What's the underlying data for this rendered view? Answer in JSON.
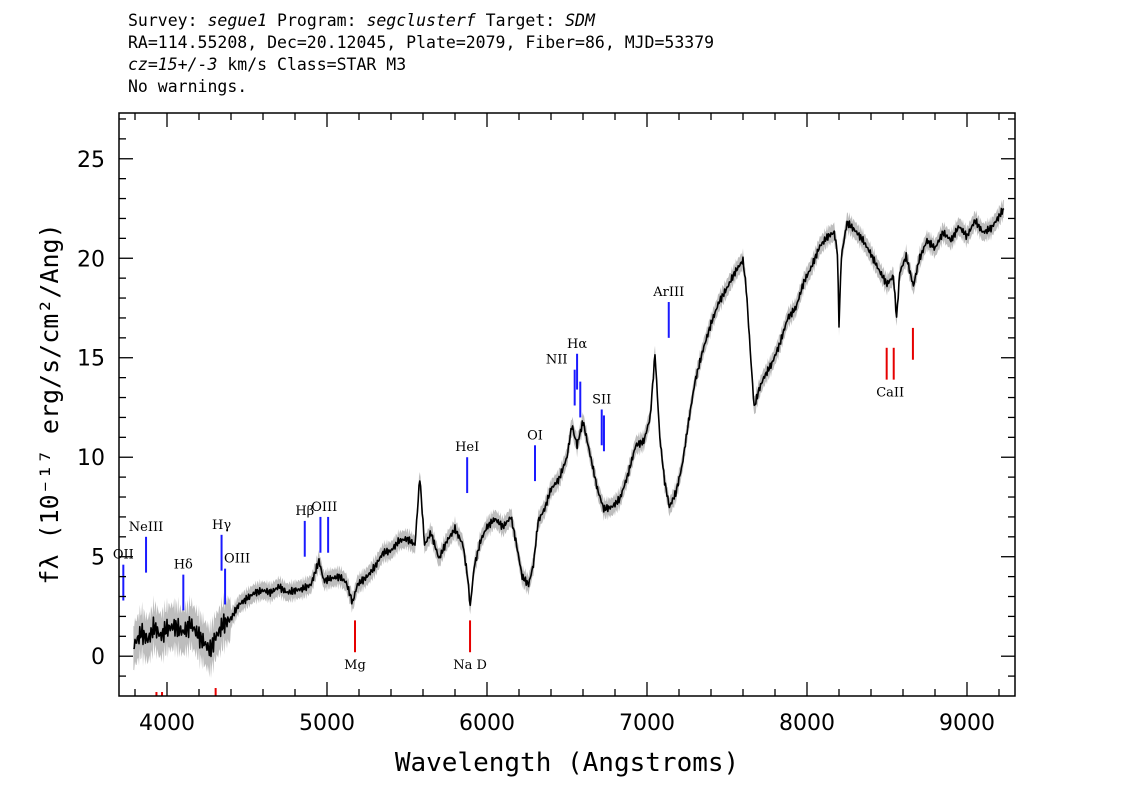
{
  "header": {
    "line1": {
      "survey_label": "Survey: ",
      "survey": "segue1",
      "program_label": " Program: ",
      "program": "segclusterf",
      "target_label": " Target: ",
      "target": "SDM"
    },
    "line2": "RA=114.55208, Dec=20.12045, Plate=2079, Fiber=86, MJD=53379",
    "line3": {
      "cz": "cz=15+/-3",
      "rest": " km/s Class=STAR M3"
    },
    "line4": "No warnings."
  },
  "chart_data": {
    "type": "line",
    "xlabel": "Wavelength (Angstroms)",
    "ylabel": "fλ (10⁻¹⁷ erg/s/cm²/Ang)",
    "xlim": [
      3700,
      9300
    ],
    "ylim": [
      -2,
      27.3
    ],
    "x_ticks": [
      4000,
      5000,
      6000,
      7000,
      8000,
      9000
    ],
    "y_ticks": [
      0,
      5,
      10,
      15,
      20,
      25
    ],
    "grid": false,
    "legend": "none",
    "colors": {
      "spectrum": "#000000",
      "error_band": "#bdbdbd",
      "emission": "#1a1aff",
      "absorption": "#e60000"
    },
    "series": [
      {
        "values": [
          [
            3790,
            0.5
          ],
          [
            3840,
            1.2
          ],
          [
            3880,
            0.8
          ],
          [
            3920,
            1.5
          ],
          [
            3960,
            1.0
          ],
          [
            4000,
            1.4
          ],
          [
            4050,
            1.5
          ],
          [
            4100,
            1.2
          ],
          [
            4150,
            1.6
          ],
          [
            4200,
            1.0
          ],
          [
            4240,
            0.6
          ],
          [
            4270,
            0.3
          ],
          [
            4300,
            0.9
          ],
          [
            4350,
            1.6
          ],
          [
            4400,
            1.9
          ],
          [
            4450,
            2.6
          ],
          [
            4500,
            2.9
          ],
          [
            4550,
            3.2
          ],
          [
            4600,
            3.3
          ],
          [
            4650,
            3.2
          ],
          [
            4700,
            3.5
          ],
          [
            4750,
            3.2
          ],
          [
            4800,
            3.3
          ],
          [
            4850,
            3.4
          ],
          [
            4900,
            3.6
          ],
          [
            4950,
            4.8
          ],
          [
            4980,
            3.8
          ],
          [
            5020,
            3.9
          ],
          [
            5080,
            4.0
          ],
          [
            5120,
            3.7
          ],
          [
            5160,
            2.7
          ],
          [
            5190,
            3.6
          ],
          [
            5250,
            4.0
          ],
          [
            5300,
            4.5
          ],
          [
            5350,
            5.2
          ],
          [
            5400,
            5.3
          ],
          [
            5450,
            5.8
          ],
          [
            5500,
            5.9
          ],
          [
            5550,
            5.6
          ],
          [
            5580,
            9.0
          ],
          [
            5610,
            5.6
          ],
          [
            5650,
            6.2
          ],
          [
            5700,
            4.9
          ],
          [
            5750,
            5.8
          ],
          [
            5800,
            6.4
          ],
          [
            5850,
            5.6
          ],
          [
            5880,
            3.9
          ],
          [
            5895,
            2.5
          ],
          [
            5920,
            4.5
          ],
          [
            5960,
            5.8
          ],
          [
            6000,
            6.5
          ],
          [
            6050,
            6.9
          ],
          [
            6100,
            6.5
          ],
          [
            6150,
            7.0
          ],
          [
            6180,
            5.8
          ],
          [
            6220,
            4.0
          ],
          [
            6260,
            3.6
          ],
          [
            6290,
            4.6
          ],
          [
            6320,
            6.8
          ],
          [
            6360,
            7.4
          ],
          [
            6400,
            8.4
          ],
          [
            6450,
            8.9
          ],
          [
            6500,
            10.0
          ],
          [
            6530,
            11.6
          ],
          [
            6563,
            10.6
          ],
          [
            6600,
            11.8
          ],
          [
            6640,
            10.3
          ],
          [
            6690,
            8.4
          ],
          [
            6730,
            7.4
          ],
          [
            6780,
            7.5
          ],
          [
            6830,
            7.9
          ],
          [
            6880,
            9.1
          ],
          [
            6930,
            10.6
          ],
          [
            6980,
            10.8
          ],
          [
            7020,
            12.0
          ],
          [
            7050,
            15.2
          ],
          [
            7080,
            11.0
          ],
          [
            7110,
            8.8
          ],
          [
            7140,
            7.5
          ],
          [
            7180,
            8.2
          ],
          [
            7220,
            9.6
          ],
          [
            7260,
            11.8
          ],
          [
            7300,
            13.8
          ],
          [
            7350,
            15.4
          ],
          [
            7400,
            16.7
          ],
          [
            7450,
            17.8
          ],
          [
            7500,
            18.5
          ],
          [
            7550,
            19.3
          ],
          [
            7600,
            19.9
          ],
          [
            7620,
            18.5
          ],
          [
            7650,
            14.8
          ],
          [
            7670,
            12.5
          ],
          [
            7700,
            13.4
          ],
          [
            7730,
            14.0
          ],
          [
            7780,
            14.7
          ],
          [
            7830,
            15.7
          ],
          [
            7880,
            17.0
          ],
          [
            7930,
            17.5
          ],
          [
            7980,
            18.8
          ],
          [
            8030,
            19.6
          ],
          [
            8080,
            20.6
          ],
          [
            8130,
            21.1
          ],
          [
            8170,
            21.3
          ],
          [
            8190,
            20.3
          ],
          [
            8200,
            16.7
          ],
          [
            8215,
            20.1
          ],
          [
            8250,
            21.8
          ],
          [
            8300,
            21.4
          ],
          [
            8350,
            20.9
          ],
          [
            8400,
            20.2
          ],
          [
            8450,
            19.4
          ],
          [
            8500,
            18.7
          ],
          [
            8540,
            19.1
          ],
          [
            8560,
            17.0
          ],
          [
            8580,
            19.3
          ],
          [
            8620,
            20.1
          ],
          [
            8665,
            18.6
          ],
          [
            8700,
            19.9
          ],
          [
            8750,
            20.9
          ],
          [
            8800,
            20.5
          ],
          [
            8850,
            21.3
          ],
          [
            8900,
            20.9
          ],
          [
            8950,
            21.6
          ],
          [
            9000,
            21.1
          ],
          [
            9050,
            21.9
          ],
          [
            9100,
            21.3
          ],
          [
            9150,
            21.5
          ],
          [
            9200,
            22.1
          ],
          [
            9230,
            22.5
          ]
        ]
      }
    ],
    "emission_lines": [
      {
        "label": "OII",
        "wavelength": 3727,
        "flux": 2.8
      },
      {
        "label": "NeIII",
        "wavelength": 3869,
        "flux": 4.2
      },
      {
        "label": "Hδ",
        "wavelength": 4102,
        "flux": 2.3
      },
      {
        "label": "Hγ",
        "wavelength": 4341,
        "flux": 4.3
      },
      {
        "label": "OIII",
        "wavelength": 4363,
        "flux": 2.6
      },
      {
        "label": "Hβ",
        "wavelength": 4861,
        "flux": 5.0
      },
      {
        "label": "OIII",
        "wavelength": 4959,
        "flux": 5.2
      },
      {
        "label": "OIII",
        "wavelength": 5007,
        "flux": 5.2
      },
      {
        "label": "HeI",
        "wavelength": 5876,
        "flux": 8.2
      },
      {
        "label": "OI",
        "wavelength": 6300,
        "flux": 8.8
      },
      {
        "label": "NII",
        "wavelength": 6548,
        "flux": 12.6
      },
      {
        "label": "Hα",
        "wavelength": 6563,
        "flux": 13.4
      },
      {
        "label": "NII",
        "wavelength": 6583,
        "flux": 12.0
      },
      {
        "label": "SII",
        "wavelength": 6717,
        "flux": 10.6
      },
      {
        "label": "SII",
        "wavelength": 6731,
        "flux": 10.3
      },
      {
        "label": "ArIII",
        "wavelength": 7136,
        "flux": 16.0
      }
    ],
    "absorption_lines": [
      {
        "label": "",
        "wavelength": 3934,
        "flux": -1.8
      },
      {
        "label": "",
        "wavelength": 3969,
        "flux": -1.8
      },
      {
        "label": "",
        "wavelength": 4304,
        "flux": -1.6
      },
      {
        "label": "Mg",
        "wavelength": 5175,
        "flux": 1.8
      },
      {
        "label": "Na D",
        "wavelength": 5894,
        "flux": 1.8
      },
      {
        "label": "CaII",
        "wavelength": 8498,
        "flux": 15.5
      },
      {
        "label": "CaII",
        "wavelength": 8542,
        "flux": 15.5
      },
      {
        "label": "CaII",
        "wavelength": 8662,
        "flux": 16.5
      }
    ]
  }
}
